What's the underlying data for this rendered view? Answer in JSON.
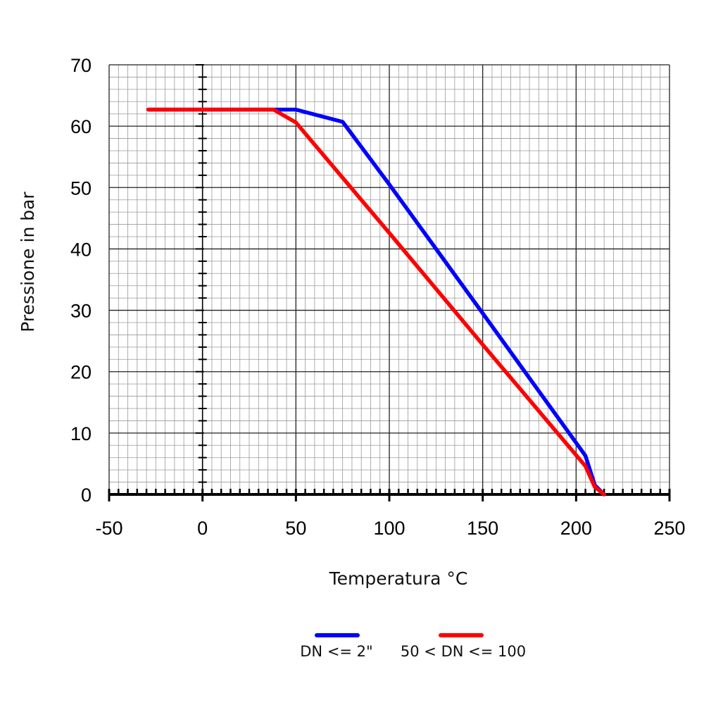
{
  "chart_data": {
    "type": "line",
    "title": "",
    "xlabel": "Temperatura °C",
    "ylabel": "Pressione in bar",
    "xlim": [
      -50,
      250
    ],
    "ylim": [
      0,
      70
    ],
    "x_ticks": [
      -50,
      0,
      50,
      100,
      150,
      200,
      250
    ],
    "y_ticks": [
      0,
      10,
      20,
      30,
      40,
      50,
      60,
      70
    ],
    "grid": true,
    "legend_position": "bottom",
    "series": [
      {
        "name": "DN <= 2\"",
        "color": "#0000ff",
        "points": [
          [
            -29,
            62.7
          ],
          [
            50,
            62.7
          ],
          [
            75,
            60.7
          ],
          [
            100,
            50.5
          ],
          [
            150,
            29.5
          ],
          [
            205,
            6.3
          ],
          [
            210,
            1.5
          ],
          [
            215,
            0
          ]
        ]
      },
      {
        "name": "50 < DN <= 100",
        "color": "#ff0000",
        "points": [
          [
            -29,
            62.7
          ],
          [
            38,
            62.7
          ],
          [
            50,
            60.6
          ],
          [
            100,
            42.6
          ],
          [
            150,
            24.4
          ],
          [
            205,
            4.6
          ],
          [
            210,
            1.2
          ],
          [
            215,
            0
          ]
        ]
      }
    ]
  }
}
